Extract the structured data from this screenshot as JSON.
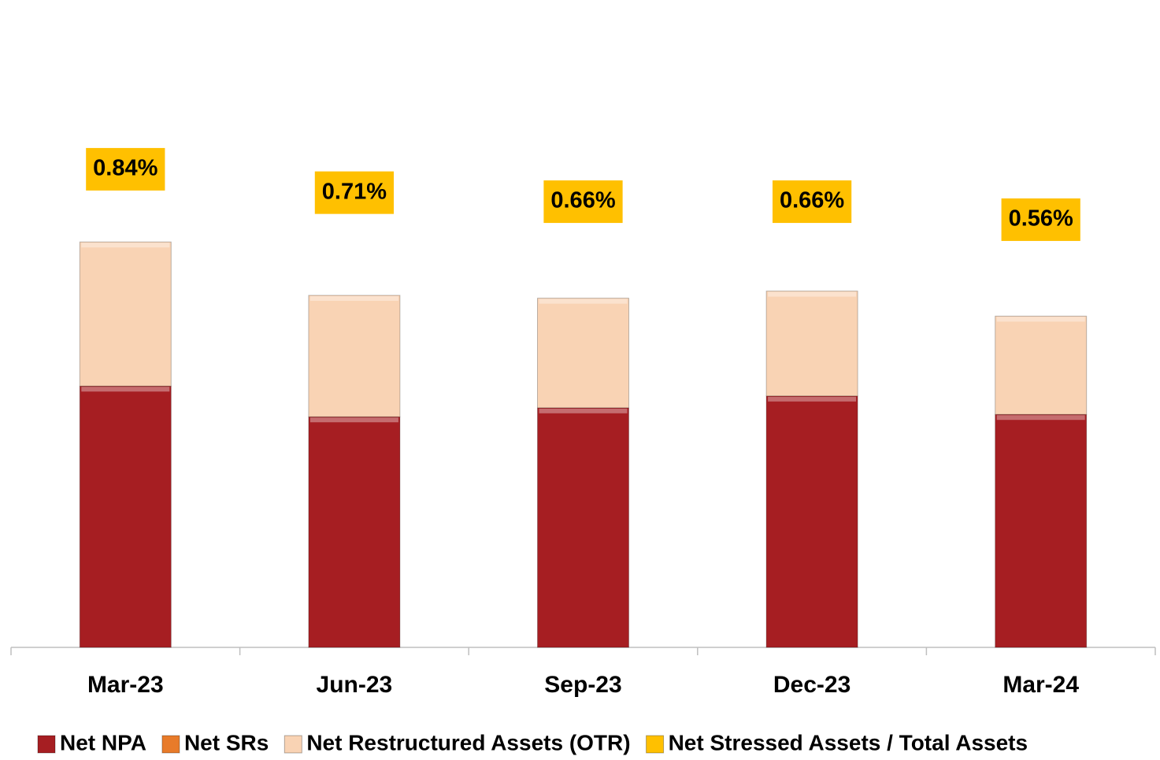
{
  "chart_data": {
    "type": "bar",
    "stacked": true,
    "categories": [
      "Mar-23",
      "Jun-23",
      "Sep-23",
      "Dec-23",
      "Mar-24"
    ],
    "ylim": [
      0,
      100
    ],
    "y2lim": [
      -1.815,
      0.809
    ],
    "series": [
      {
        "name": "Net NPA",
        "color": "#a61e22",
        "values": [
          55.3,
          48.8,
          50.7,
          53.2,
          49.3
        ]
      },
      {
        "name": "Net SRs",
        "color": "#e87b2a",
        "values": [
          0,
          0,
          0,
          0,
          0
        ]
      },
      {
        "name": "Net Restructured Assets (OTR)",
        "color": "#f9d3b4",
        "values": [
          30.5,
          25.7,
          23.2,
          22.2,
          20.8
        ]
      },
      {
        "name": "Net Stressed Assets / Total Assets",
        "color": "#ffc000",
        "axis": "y2",
        "labels_only": true,
        "values": [
          0.84,
          0.71,
          0.66,
          0.66,
          0.56
        ],
        "value_labels": [
          "0.84%",
          "0.71%",
          "0.66%",
          "0.66%",
          "0.56%"
        ]
      }
    ]
  }
}
